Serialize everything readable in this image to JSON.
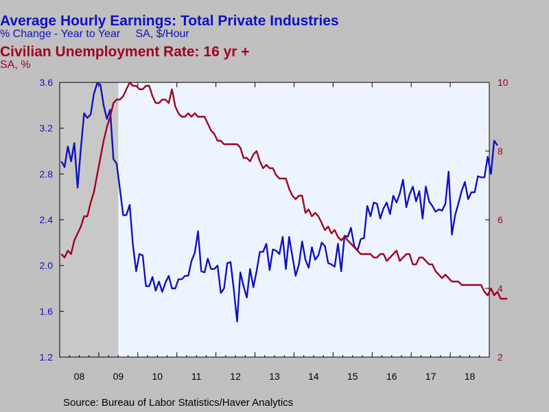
{
  "titles": {
    "line1": "Average Hourly Earnings: Total Private Industries",
    "line2": "% Change - Year to Year     SA, $/Hour",
    "line3": "Civilian Unemployment Rate: 16 yr +",
    "line4": "SA, %"
  },
  "source": "Source:  Bureau of Labor Statistics/Haver Analytics",
  "colors": {
    "background": "#c0c0c0",
    "plot_bg": "#eef4ff",
    "recession_shade": "#c8c8c8",
    "earnings": "#1010c0",
    "unemployment": "#a00020",
    "left_axis": "#1010c0",
    "right_axis": "#a00020"
  },
  "chart_data": {
    "type": "line",
    "x_axis": {
      "start_year": 2008,
      "end_year": 2019,
      "tick_labels": [
        "08",
        "09",
        "10",
        "11",
        "12",
        "13",
        "14",
        "15",
        "16",
        "17",
        "18"
      ]
    },
    "left_axis": {
      "ylim": [
        1.2,
        3.6
      ],
      "ticks": [
        "1.2",
        "1.6",
        "2.0",
        "2.4",
        "2.8",
        "3.2",
        "3.6"
      ]
    },
    "right_axis": {
      "ylim": [
        2,
        10
      ],
      "ticks": [
        "2",
        "4",
        "6",
        "8",
        "10"
      ]
    },
    "recession": {
      "start": 2008.0,
      "end": 2009.5
    },
    "series": [
      {
        "name": "Average Hourly Earnings: Total Private Industries",
        "axis": "left",
        "start": 2008.0,
        "values": [
          2.91,
          2.86,
          3.04,
          2.91,
          3.07,
          2.68,
          3.02,
          3.33,
          3.29,
          3.32,
          3.5,
          3.59,
          3.58,
          3.4,
          3.28,
          3.36,
          2.93,
          2.89,
          2.67,
          2.44,
          2.44,
          2.53,
          2.18,
          1.95,
          2.1,
          2.09,
          1.82,
          1.82,
          1.9,
          1.78,
          1.86,
          1.77,
          1.85,
          1.91,
          1.8,
          1.8,
          1.88,
          1.88,
          1.91,
          1.91,
          2.04,
          2.11,
          2.3,
          1.95,
          1.94,
          2.06,
          1.97,
          1.97,
          2.0,
          1.76,
          1.8,
          2.02,
          2.03,
          1.79,
          1.51,
          1.94,
          1.82,
          1.72,
          1.97,
          1.81,
          1.95,
          2.12,
          2.12,
          2.19,
          1.96,
          2.14,
          2.13,
          2.1,
          2.25,
          1.97,
          2.25,
          2.08,
          1.91,
          2.01,
          2.21,
          2.05,
          1.98,
          2.16,
          2.05,
          2.09,
          2.2,
          2.17,
          2.02,
          2.01,
          1.99,
          2.19,
          1.95,
          2.26,
          2.25,
          2.33,
          2.17,
          2.13,
          2.23,
          2.24,
          2.52,
          2.43,
          2.55,
          2.54,
          2.41,
          2.5,
          2.55,
          2.45,
          2.61,
          2.55,
          2.63,
          2.75,
          2.51,
          2.62,
          2.69,
          2.56,
          2.65,
          2.41,
          2.69,
          2.56,
          2.52,
          2.47,
          2.49,
          2.48,
          2.54,
          2.82,
          2.27,
          2.44,
          2.54,
          2.65,
          2.73,
          2.58,
          2.64,
          2.64,
          2.78,
          2.77,
          2.77,
          2.95,
          2.8,
          3.09,
          3.05
        ]
      },
      {
        "name": "Civilian Unemployment Rate: 16 yr +",
        "axis": "right",
        "start": 2008.0,
        "values": [
          5.0,
          4.9,
          5.1,
          5.0,
          5.4,
          5.6,
          5.8,
          6.1,
          6.1,
          6.5,
          6.8,
          7.3,
          7.8,
          8.3,
          8.7,
          9.0,
          9.4,
          9.5,
          9.5,
          9.6,
          9.8,
          10.0,
          9.9,
          9.9,
          9.8,
          9.8,
          9.9,
          9.9,
          9.6,
          9.4,
          9.4,
          9.5,
          9.5,
          9.4,
          9.8,
          9.3,
          9.1,
          9.0,
          9.0,
          9.1,
          9.0,
          9.1,
          9.0,
          9.0,
          9.0,
          8.8,
          8.6,
          8.5,
          8.3,
          8.3,
          8.2,
          8.2,
          8.2,
          8.2,
          8.2,
          8.1,
          7.8,
          7.8,
          7.7,
          7.9,
          8.0,
          7.7,
          7.5,
          7.6,
          7.5,
          7.5,
          7.3,
          7.2,
          7.2,
          7.2,
          6.9,
          6.7,
          6.6,
          6.7,
          6.7,
          6.2,
          6.3,
          6.1,
          6.2,
          6.1,
          5.9,
          5.7,
          5.8,
          5.6,
          5.7,
          5.5,
          5.4,
          5.5,
          5.4,
          5.3,
          5.2,
          5.1,
          5.0,
          5.0,
          5.0,
          5.0,
          4.9,
          4.9,
          5.0,
          5.0,
          4.8,
          4.9,
          5.0,
          5.1,
          4.8,
          4.9,
          5.0,
          5.0,
          4.7,
          4.7,
          4.9,
          4.9,
          4.8,
          4.7,
          4.7,
          4.5,
          4.4,
          4.3,
          4.4,
          4.3,
          4.2,
          4.2,
          4.2,
          4.1,
          4.1,
          4.1,
          4.1,
          4.1,
          4.1,
          4.1,
          3.9,
          3.8,
          4.0,
          3.8,
          3.9,
          3.7,
          3.7,
          3.7
        ]
      }
    ]
  }
}
